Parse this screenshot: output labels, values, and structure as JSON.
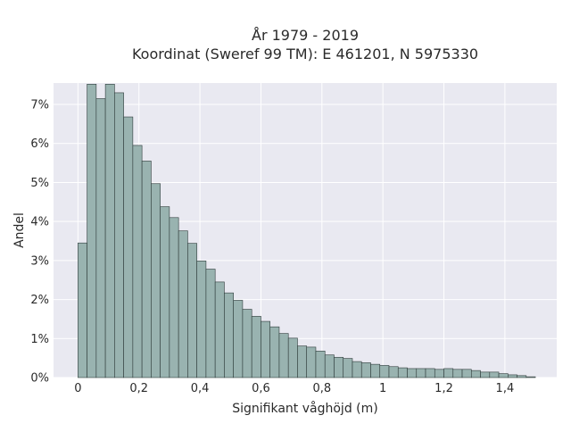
{
  "chart_data": {
    "type": "bar",
    "title_line1": "År 1979 - 2019",
    "title_line2": "Koordinat (Sweref 99 TM): E 461201, N 5975330",
    "xlabel": "Signifikant våghöjd (m)",
    "ylabel": "Andel",
    "xlim": [
      -0.08,
      1.57
    ],
    "ylim": [
      0,
      0.0755
    ],
    "grid": true,
    "bin_width": 0.03,
    "x_start": 0.0,
    "x_ticks": [
      0,
      0.2,
      0.4,
      0.6,
      0.8,
      1,
      1.2,
      1.4
    ],
    "x_tick_labels": [
      "0",
      "0,2",
      "0,4",
      "0,6",
      "0,8",
      "1",
      "1,2",
      "1,4"
    ],
    "y_ticks": [
      0,
      0.01,
      0.02,
      0.03,
      0.04,
      0.05,
      0.06,
      0.07
    ],
    "y_tick_labels": [
      "0%",
      "1%",
      "2%",
      "3%",
      "4%",
      "5%",
      "6%",
      "7%"
    ],
    "values": [
      0.0345,
      0.0752,
      0.0715,
      0.0752,
      0.073,
      0.0668,
      0.0595,
      0.0555,
      0.0497,
      0.0438,
      0.041,
      0.0376,
      0.0344,
      0.0299,
      0.0278,
      0.0245,
      0.0217,
      0.0198,
      0.0175,
      0.0157,
      0.0144,
      0.013,
      0.0113,
      0.0101,
      0.0081,
      0.0078,
      0.0068,
      0.0058,
      0.0052,
      0.0049,
      0.0041,
      0.0038,
      0.0034,
      0.0031,
      0.0028,
      0.0025,
      0.0023,
      0.0023,
      0.0023,
      0.0021,
      0.0023,
      0.0021,
      0.0021,
      0.0018,
      0.0014,
      0.0014,
      0.001,
      0.0007,
      0.0005,
      0.0002
    ],
    "colors": {
      "bar_fill": "#99b3b0",
      "bar_stroke": "#2e3b3a",
      "plot_bg": "#e9e9f1",
      "grid": "#ffffff"
    }
  }
}
